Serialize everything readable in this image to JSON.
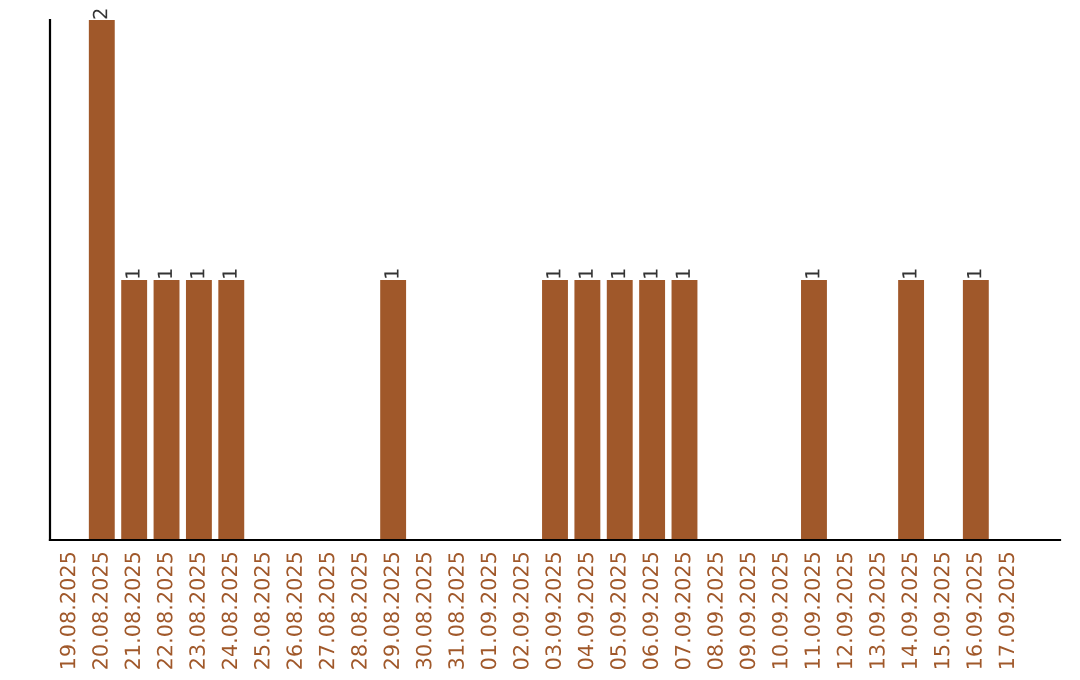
{
  "chart_data": {
    "type": "bar",
    "categories": [
      "19.08.2025",
      "20.08.2025",
      "21.08.2025",
      "22.08.2025",
      "23.08.2025",
      "24.08.2025",
      "25.08.2025",
      "26.08.2025",
      "27.08.2025",
      "28.08.2025",
      "29.08.2025",
      "30.08.2025",
      "31.08.2025",
      "01.09.2025",
      "02.09.2025",
      "03.09.2025",
      "04.09.2025",
      "05.09.2025",
      "06.09.2025",
      "07.09.2025",
      "08.09.2025",
      "09.09.2025",
      "10.09.2025",
      "11.09.2025",
      "12.09.2025",
      "13.09.2025",
      "14.09.2025",
      "15.09.2025",
      "16.09.2025",
      "17.09.2025"
    ],
    "values": [
      0,
      2,
      1,
      1,
      1,
      1,
      0,
      0,
      0,
      0,
      1,
      0,
      0,
      0,
      0,
      1,
      1,
      1,
      1,
      1,
      0,
      0,
      0,
      1,
      0,
      0,
      1,
      0,
      1,
      0
    ],
    "value_labels": [
      null,
      "2",
      "1",
      "1",
      "1",
      "1",
      null,
      null,
      null,
      null,
      "1",
      null,
      null,
      null,
      null,
      "1",
      "1",
      "1",
      "1",
      "1",
      null,
      null,
      null,
      "1",
      null,
      null,
      "1",
      null,
      "1",
      null
    ],
    "color": "#a0582a",
    "grid": false,
    "legend": false
  }
}
